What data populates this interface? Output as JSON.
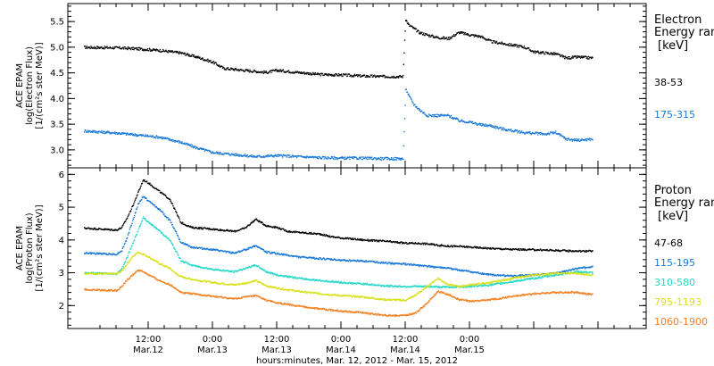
{
  "chart_data": [
    {
      "type": "scatter",
      "panel": "electron",
      "ylabel_lines": [
        "ACE EPAM",
        "log(Electron Flux)",
        "[1/(cm²s ster MeV)]"
      ],
      "ylim": [
        2.65,
        5.85
      ],
      "yticks": [
        3.0,
        3.5,
        4.0,
        4.5,
        5.0,
        5.5
      ],
      "ytick_labels": [
        "3.0",
        "3.5",
        "4.0",
        "4.5",
        "5.0",
        "5.5"
      ],
      "legend_title": [
        "Electron",
        "Energy ran"
      ],
      "legend_unit": "[keV]",
      "series": [
        {
          "name": "38-53",
          "color": "#000000",
          "points": [
            [
              0,
              5.01
            ],
            [
              6,
              5.0
            ],
            [
              10,
              4.98
            ],
            [
              14,
              4.95
            ],
            [
              18,
              4.9
            ],
            [
              21,
              4.82
            ],
            [
              24,
              4.72
            ],
            [
              26,
              4.6
            ],
            [
              30,
              4.56
            ],
            [
              34,
              4.52
            ],
            [
              36,
              4.56
            ],
            [
              40,
              4.52
            ],
            [
              44,
              4.48
            ],
            [
              48,
              4.47
            ],
            [
              52,
              4.45
            ],
            [
              56,
              4.44
            ],
            [
              59.5,
              4.44
            ],
            [
              59.8,
              5.15
            ],
            [
              60,
              5.55
            ],
            [
              60.5,
              5.45
            ],
            [
              61.5,
              5.38
            ],
            [
              62.5,
              5.3
            ],
            [
              64,
              5.25
            ],
            [
              66,
              5.2
            ],
            [
              68,
              5.18
            ],
            [
              70,
              5.3
            ],
            [
              72,
              5.25
            ],
            [
              74,
              5.22
            ],
            [
              76,
              5.12
            ],
            [
              80,
              5.05
            ],
            [
              82,
              5.02
            ],
            [
              84,
              4.92
            ],
            [
              88,
              4.88
            ],
            [
              90,
              4.8
            ],
            [
              92,
              4.82
            ],
            [
              95,
              4.8
            ]
          ]
        },
        {
          "name": "175-315",
          "color": "#1878d8",
          "points": [
            [
              0,
              3.38
            ],
            [
              6,
              3.34
            ],
            [
              10,
              3.3
            ],
            [
              14,
              3.26
            ],
            [
              18,
              3.16
            ],
            [
              21,
              3.05
            ],
            [
              24,
              2.96
            ],
            [
              28,
              2.92
            ],
            [
              32,
              2.88
            ],
            [
              36,
              2.9
            ],
            [
              40,
              2.88
            ],
            [
              44,
              2.86
            ],
            [
              48,
              2.85
            ],
            [
              52,
              2.85
            ],
            [
              56,
              2.84
            ],
            [
              59.5,
              2.84
            ],
            [
              59.8,
              3.6
            ],
            [
              60,
              4.2
            ],
            [
              60.5,
              4.08
            ],
            [
              61.5,
              3.9
            ],
            [
              62.5,
              3.8
            ],
            [
              64,
              3.68
            ],
            [
              66,
              3.68
            ],
            [
              68,
              3.68
            ],
            [
              70,
              3.58
            ],
            [
              72,
              3.55
            ],
            [
              74,
              3.5
            ],
            [
              76,
              3.48
            ],
            [
              78,
              3.42
            ],
            [
              82,
              3.35
            ],
            [
              86,
              3.32
            ],
            [
              88,
              3.35
            ],
            [
              90,
              3.22
            ],
            [
              92,
              3.2
            ],
            [
              95,
              3.22
            ]
          ]
        }
      ]
    },
    {
      "type": "scatter",
      "panel": "proton",
      "ylabel_lines": [
        "ACE EPAM",
        "log(Proton Flux)",
        "[1/(cm²s ster MeV)]"
      ],
      "ylim": [
        1.3,
        6.2
      ],
      "yticks": [
        2,
        3,
        4,
        5,
        6
      ],
      "ytick_labels": [
        "2",
        "3",
        "4",
        "5",
        "6"
      ],
      "legend_title": [
        "Proton",
        "Energy ran"
      ],
      "legend_unit": "[keV]",
      "series": [
        {
          "name": "47-68",
          "color": "#000000",
          "points": [
            [
              0,
              4.38
            ],
            [
              6,
              4.32
            ],
            [
              7,
              4.4
            ],
            [
              8,
              4.7
            ],
            [
              9,
              5.05
            ],
            [
              10,
              5.45
            ],
            [
              11,
              5.85
            ],
            [
              12,
              5.75
            ],
            [
              14,
              5.5
            ],
            [
              16,
              5.25
            ],
            [
              17,
              4.9
            ],
            [
              18,
              4.55
            ],
            [
              20,
              4.4
            ],
            [
              24,
              4.35
            ],
            [
              28,
              4.28
            ],
            [
              30,
              4.38
            ],
            [
              32,
              4.65
            ],
            [
              34,
              4.45
            ],
            [
              36,
              4.4
            ],
            [
              38,
              4.28
            ],
            [
              40,
              4.25
            ],
            [
              42,
              4.22
            ],
            [
              44,
              4.2
            ],
            [
              46,
              4.12
            ],
            [
              48,
              4.08
            ],
            [
              50,
              4.05
            ],
            [
              52,
              4.02
            ],
            [
              56,
              3.98
            ],
            [
              58,
              3.95
            ],
            [
              60,
              3.92
            ],
            [
              62,
              3.92
            ],
            [
              64,
              3.9
            ],
            [
              66,
              3.86
            ],
            [
              68,
              3.83
            ],
            [
              70,
              3.82
            ],
            [
              72,
              3.8
            ],
            [
              74,
              3.78
            ],
            [
              76,
              3.76
            ],
            [
              80,
              3.73
            ],
            [
              84,
              3.72
            ],
            [
              88,
              3.7
            ],
            [
              92,
              3.68
            ],
            [
              95,
              3.68
            ]
          ]
        },
        {
          "name": "115-195",
          "color": "#1878d8",
          "points": [
            [
              0,
              3.62
            ],
            [
              6,
              3.58
            ],
            [
              7,
              3.7
            ],
            [
              8,
              4.1
            ],
            [
              9,
              4.6
            ],
            [
              10,
              5.1
            ],
            [
              11,
              5.35
            ],
            [
              12,
              5.2
            ],
            [
              14,
              4.95
            ],
            [
              16,
              4.6
            ],
            [
              17,
              4.3
            ],
            [
              18,
              3.95
            ],
            [
              20,
              3.8
            ],
            [
              24,
              3.72
            ],
            [
              28,
              3.62
            ],
            [
              30,
              3.72
            ],
            [
              32,
              3.85
            ],
            [
              34,
              3.65
            ],
            [
              36,
              3.6
            ],
            [
              40,
              3.5
            ],
            [
              44,
              3.45
            ],
            [
              48,
              3.4
            ],
            [
              52,
              3.38
            ],
            [
              56,
              3.32
            ],
            [
              60,
              3.28
            ],
            [
              64,
              3.22
            ],
            [
              68,
              3.15
            ],
            [
              72,
              3.05
            ],
            [
              76,
              2.95
            ],
            [
              80,
              2.92
            ],
            [
              84,
              2.95
            ],
            [
              88,
              3.0
            ],
            [
              92,
              3.15
            ],
            [
              95,
              3.2
            ]
          ]
        },
        {
          "name": "310-580",
          "color": "#20d8c8",
          "points": [
            [
              0,
              3.02
            ],
            [
              6,
              2.98
            ],
            [
              7,
              3.15
            ],
            [
              8,
              3.5
            ],
            [
              9,
              3.9
            ],
            [
              10,
              4.3
            ],
            [
              11,
              4.7
            ],
            [
              12,
              4.55
            ],
            [
              14,
              4.3
            ],
            [
              16,
              4.0
            ],
            [
              17,
              3.7
            ],
            [
              18,
              3.4
            ],
            [
              20,
              3.25
            ],
            [
              24,
              3.12
            ],
            [
              28,
              3.05
            ],
            [
              30,
              3.15
            ],
            [
              32,
              3.25
            ],
            [
              34,
              3.05
            ],
            [
              36,
              2.95
            ],
            [
              40,
              2.85
            ],
            [
              44,
              2.78
            ],
            [
              48,
              2.72
            ],
            [
              52,
              2.68
            ],
            [
              56,
              2.62
            ],
            [
              60,
              2.6
            ],
            [
              64,
              2.6
            ],
            [
              68,
              2.58
            ],
            [
              72,
              2.6
            ],
            [
              76,
              2.65
            ],
            [
              80,
              2.75
            ],
            [
              84,
              2.85
            ],
            [
              88,
              2.95
            ],
            [
              92,
              3.05
            ],
            [
              95,
              3.02
            ]
          ]
        },
        {
          "name": "795-1193",
          "color": "#d8e018",
          "points": [
            [
              0,
              3.0
            ],
            [
              6,
              2.98
            ],
            [
              7,
              3.08
            ],
            [
              8,
              3.3
            ],
            [
              9,
              3.5
            ],
            [
              10,
              3.65
            ],
            [
              11,
              3.58
            ],
            [
              12,
              3.5
            ],
            [
              14,
              3.3
            ],
            [
              16,
              3.15
            ],
            [
              17,
              3.0
            ],
            [
              18,
              2.9
            ],
            [
              20,
              2.82
            ],
            [
              24,
              2.72
            ],
            [
              28,
              2.65
            ],
            [
              30,
              2.7
            ],
            [
              32,
              2.78
            ],
            [
              34,
              2.62
            ],
            [
              36,
              2.55
            ],
            [
              40,
              2.45
            ],
            [
              44,
              2.38
            ],
            [
              48,
              2.32
            ],
            [
              52,
              2.28
            ],
            [
              56,
              2.2
            ],
            [
              60,
              2.18
            ],
            [
              62,
              2.35
            ],
            [
              64,
              2.6
            ],
            [
              66,
              2.85
            ],
            [
              68,
              2.65
            ],
            [
              70,
              2.6
            ],
            [
              72,
              2.65
            ],
            [
              76,
              2.72
            ],
            [
              80,
              2.85
            ],
            [
              84,
              2.95
            ],
            [
              88,
              3.0
            ],
            [
              92,
              3.0
            ],
            [
              95,
              2.95
            ]
          ]
        },
        {
          "name": "1060-1900",
          "color": "#f08020",
          "points": [
            [
              0,
              2.5
            ],
            [
              6,
              2.48
            ],
            [
              7,
              2.6
            ],
            [
              8,
              2.8
            ],
            [
              9,
              2.95
            ],
            [
              10,
              3.1
            ],
            [
              11,
              3.05
            ],
            [
              12,
              2.95
            ],
            [
              14,
              2.78
            ],
            [
              16,
              2.65
            ],
            [
              17,
              2.55
            ],
            [
              18,
              2.42
            ],
            [
              20,
              2.38
            ],
            [
              24,
              2.3
            ],
            [
              28,
              2.22
            ],
            [
              30,
              2.28
            ],
            [
              32,
              2.32
            ],
            [
              34,
              2.18
            ],
            [
              36,
              2.1
            ],
            [
              40,
              2.0
            ],
            [
              44,
              1.92
            ],
            [
              48,
              1.85
            ],
            [
              52,
              1.8
            ],
            [
              56,
              1.72
            ],
            [
              60,
              1.72
            ],
            [
              62,
              1.8
            ],
            [
              64,
              2.1
            ],
            [
              66,
              2.45
            ],
            [
              68,
              2.35
            ],
            [
              70,
              2.2
            ],
            [
              72,
              2.15
            ],
            [
              76,
              2.2
            ],
            [
              80,
              2.3
            ],
            [
              84,
              2.38
            ],
            [
              88,
              2.42
            ],
            [
              92,
              2.42
            ],
            [
              95,
              2.35
            ]
          ]
        }
      ]
    }
  ],
  "x_axis": {
    "xlim": [
      -3,
      105
    ],
    "major_ticks": [
      12,
      24,
      36,
      48,
      60,
      72,
      84,
      96
    ],
    "tick_labels": [
      {
        "time": "12:00",
        "date": "Mar.12"
      },
      {
        "time": "0:00",
        "date": "Mar.13"
      },
      {
        "time": "12:00",
        "date": "Mar.13"
      },
      {
        "time": "0:00",
        "date": "Mar.14"
      },
      {
        "time": "12:00",
        "date": "Mar.14"
      },
      {
        "time": "0:00",
        "date": "Mar.15"
      },
      {
        "time": "",
        "date": ""
      },
      {
        "time": "",
        "date": ""
      }
    ],
    "title": "hours:minutes, Mar. 12, 2012 - Mar. 15, 2012"
  }
}
